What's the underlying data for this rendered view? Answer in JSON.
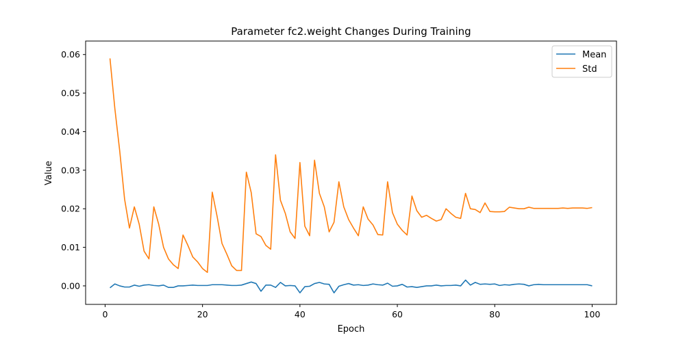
{
  "chart_data": {
    "type": "line",
    "title": "Parameter fc2.weight Changes During Training",
    "xlabel": "Epoch",
    "ylabel": "Value",
    "xlim": [
      -4,
      105
    ],
    "ylim": [
      -0.0048,
      0.0635
    ],
    "xticks": [
      0,
      20,
      40,
      60,
      80,
      100
    ],
    "yticks": [
      0.0,
      0.01,
      0.02,
      0.03,
      0.04,
      0.05,
      0.06
    ],
    "ytick_labels": [
      "0.00",
      "0.01",
      "0.02",
      "0.03",
      "0.04",
      "0.05",
      "0.06"
    ],
    "grid": false,
    "legend_position": "top-right",
    "x": [
      1,
      2,
      3,
      4,
      5,
      6,
      7,
      8,
      9,
      10,
      11,
      12,
      13,
      14,
      15,
      16,
      17,
      18,
      19,
      20,
      21,
      22,
      23,
      24,
      25,
      26,
      27,
      28,
      29,
      30,
      31,
      32,
      33,
      34,
      35,
      36,
      37,
      38,
      39,
      40,
      41,
      42,
      43,
      44,
      45,
      46,
      47,
      48,
      49,
      50,
      51,
      52,
      53,
      54,
      55,
      56,
      57,
      58,
      59,
      60,
      61,
      62,
      63,
      64,
      65,
      66,
      67,
      68,
      69,
      70,
      71,
      72,
      73,
      74,
      75,
      76,
      77,
      78,
      79,
      80,
      81,
      82,
      83,
      84,
      85,
      86,
      87,
      88,
      89,
      90,
      91,
      92,
      93,
      94,
      95,
      96,
      97,
      98,
      99,
      100
    ],
    "series": [
      {
        "name": "Mean",
        "color": "#1f77b4",
        "values": [
          -0.0005,
          0.0005,
          0.0,
          -0.0003,
          -0.0003,
          0.0002,
          -0.0001,
          0.0002,
          0.0003,
          0.0001,
          0.0,
          0.0002,
          -0.0004,
          -0.0004,
          0.0,
          0.0,
          0.0001,
          0.0002,
          0.0001,
          0.0001,
          0.0001,
          0.0003,
          0.0003,
          0.0003,
          0.0002,
          0.0001,
          0.0001,
          0.0002,
          0.0006,
          0.001,
          0.0006,
          -0.0014,
          0.0002,
          0.0002,
          -0.0004,
          0.0009,
          0.0,
          0.0001,
          0.0,
          -0.0018,
          -0.0002,
          -0.0001,
          0.0006,
          0.0009,
          0.0005,
          0.0004,
          -0.0018,
          -0.0001,
          0.0003,
          0.0006,
          0.0002,
          0.0003,
          0.0001,
          0.0002,
          0.0005,
          0.0003,
          0.0002,
          0.0007,
          -0.0001,
          0.0,
          0.0004,
          -0.0003,
          -0.0002,
          -0.0004,
          -0.0002,
          0.0,
          0.0,
          0.0002,
          0.0,
          0.0001,
          0.0001,
          0.0002,
          0.0,
          0.0015,
          0.0002,
          0.0009,
          0.0004,
          0.0005,
          0.0004,
          0.0005,
          0.0001,
          0.0003,
          0.0002,
          0.0004,
          0.0005,
          0.0004,
          0.0,
          0.0003,
          0.0004,
          0.0003,
          0.0003,
          0.0003,
          0.0003,
          0.0003,
          0.0003,
          0.0003,
          0.0003,
          0.0003,
          0.0003,
          0.0
        ]
      },
      {
        "name": "Std",
        "color": "#ff7f0e",
        "values": [
          0.059,
          0.046,
          0.035,
          0.0225,
          0.015,
          0.0205,
          0.016,
          0.009,
          0.007,
          0.0205,
          0.016,
          0.01,
          0.007,
          0.0055,
          0.0045,
          0.0132,
          0.0105,
          0.0075,
          0.0062,
          0.0045,
          0.0035,
          0.0243,
          0.018,
          0.011,
          0.0082,
          0.0052,
          0.004,
          0.004,
          0.0295,
          0.0242,
          0.0135,
          0.0128,
          0.0105,
          0.0095,
          0.034,
          0.0222,
          0.0188,
          0.014,
          0.0123,
          0.032,
          0.0155,
          0.013,
          0.0326,
          0.024,
          0.0205,
          0.014,
          0.0165,
          0.027,
          0.0205,
          0.0172,
          0.015,
          0.013,
          0.0205,
          0.0173,
          0.0158,
          0.0133,
          0.0132,
          0.027,
          0.019,
          0.016,
          0.0144,
          0.0132,
          0.0233,
          0.0195,
          0.0178,
          0.0183,
          0.0175,
          0.0168,
          0.0172,
          0.02,
          0.0188,
          0.0178,
          0.0175,
          0.024,
          0.02,
          0.0198,
          0.019,
          0.0215,
          0.0193,
          0.0192,
          0.0192,
          0.0193,
          0.0204,
          0.0202,
          0.02,
          0.02,
          0.0204,
          0.0201,
          0.0201,
          0.0201,
          0.0201,
          0.0201,
          0.0201,
          0.0202,
          0.0201,
          0.0202,
          0.0202,
          0.0202,
          0.0201,
          0.0203
        ]
      }
    ]
  }
}
